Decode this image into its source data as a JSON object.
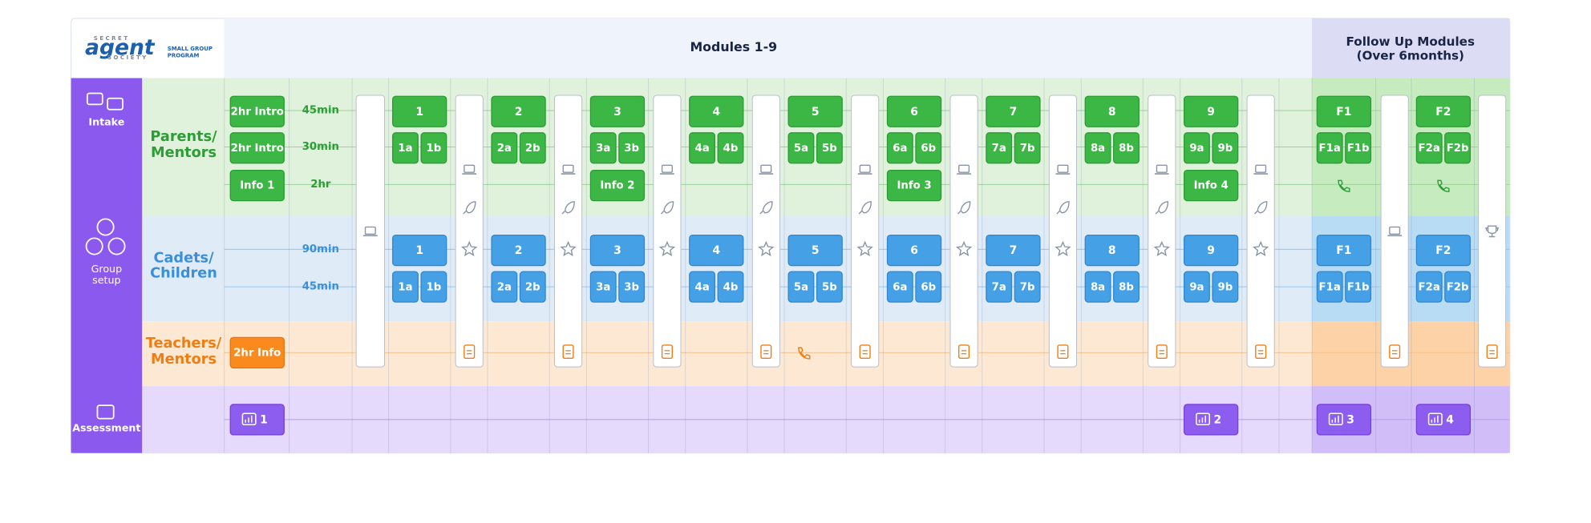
{
  "header": {
    "logo": {
      "top": "SECRET",
      "main": "agent",
      "bottom": "SOCIETY",
      "tag": [
        "SMALL GROUP",
        "PROGRAM"
      ]
    },
    "modules_title": "Modules 1-9",
    "follow_up_title": [
      "Follow Up Modules",
      "(Over 6months)"
    ]
  },
  "sidebar": {
    "intake": "Intake",
    "group_setup": [
      "Group",
      "setup"
    ],
    "assessment": "Assessment"
  },
  "rows": {
    "parents": [
      "Parents/",
      "Mentors"
    ],
    "cadets": [
      "Cadets/",
      "Children"
    ],
    "teachers": [
      "Teachers/",
      "Mentors"
    ]
  },
  "times": [
    "45min",
    "30min",
    "2hr",
    "90min",
    "45min"
  ],
  "intro": {
    "parents": [
      "2hr Intro",
      "2hr Intro",
      "Info 1"
    ],
    "teachers": "2hr Info"
  },
  "modules": [
    {
      "parent_main": "1",
      "parent_sessions": [
        "1a",
        "1b"
      ],
      "cadet_main": "1",
      "cadet_sessions": [
        "1a",
        "1b"
      ]
    },
    {
      "parent_main": "2",
      "parent_sessions": [
        "2a",
        "2b"
      ],
      "cadet_main": "2",
      "cadet_sessions": [
        "2a",
        "2b"
      ]
    },
    {
      "parent_main": "3",
      "parent_sessions": [
        "3a",
        "3b"
      ],
      "info": "Info 2",
      "cadet_main": "3",
      "cadet_sessions": [
        "3a",
        "3b"
      ]
    },
    {
      "parent_main": "4",
      "parent_sessions": [
        "4a",
        "4b"
      ],
      "cadet_main": "4",
      "cadet_sessions": [
        "4a",
        "4b"
      ]
    },
    {
      "parent_main": "5",
      "parent_sessions": [
        "5a",
        "5b"
      ],
      "cadet_main": "5",
      "cadet_sessions": [
        "5a",
        "5b"
      ]
    },
    {
      "parent_main": "6",
      "parent_sessions": [
        "6a",
        "6b"
      ],
      "info": "Info 3",
      "cadet_main": "6",
      "cadet_sessions": [
        "6a",
        "6b"
      ]
    },
    {
      "parent_main": "7",
      "parent_sessions": [
        "7a",
        "7b"
      ],
      "cadet_main": "7",
      "cadet_sessions": [
        "7a",
        "7b"
      ]
    },
    {
      "parent_main": "8",
      "parent_sessions": [
        "8a",
        "8b"
      ],
      "cadet_main": "8",
      "cadet_sessions": [
        "8a",
        "8b"
      ]
    },
    {
      "parent_main": "9",
      "parent_sessions": [
        "9a",
        "9b"
      ],
      "info": "Info 4",
      "cadet_main": "9",
      "cadet_sessions": [
        "9a",
        "9b"
      ]
    }
  ],
  "follow_up": [
    {
      "parent_main": "F1",
      "parent_sessions": [
        "F1a",
        "F1b"
      ],
      "cadet_main": "F1",
      "cadet_sessions": [
        "F1a",
        "F1b"
      ]
    },
    {
      "parent_main": "F2",
      "parent_sessions": [
        "F2a",
        "F2b"
      ],
      "cadet_main": "F2",
      "cadet_sessions": [
        "F2a",
        "F2b"
      ]
    }
  ],
  "assessments": [
    "1",
    "2",
    "3",
    "4"
  ]
}
